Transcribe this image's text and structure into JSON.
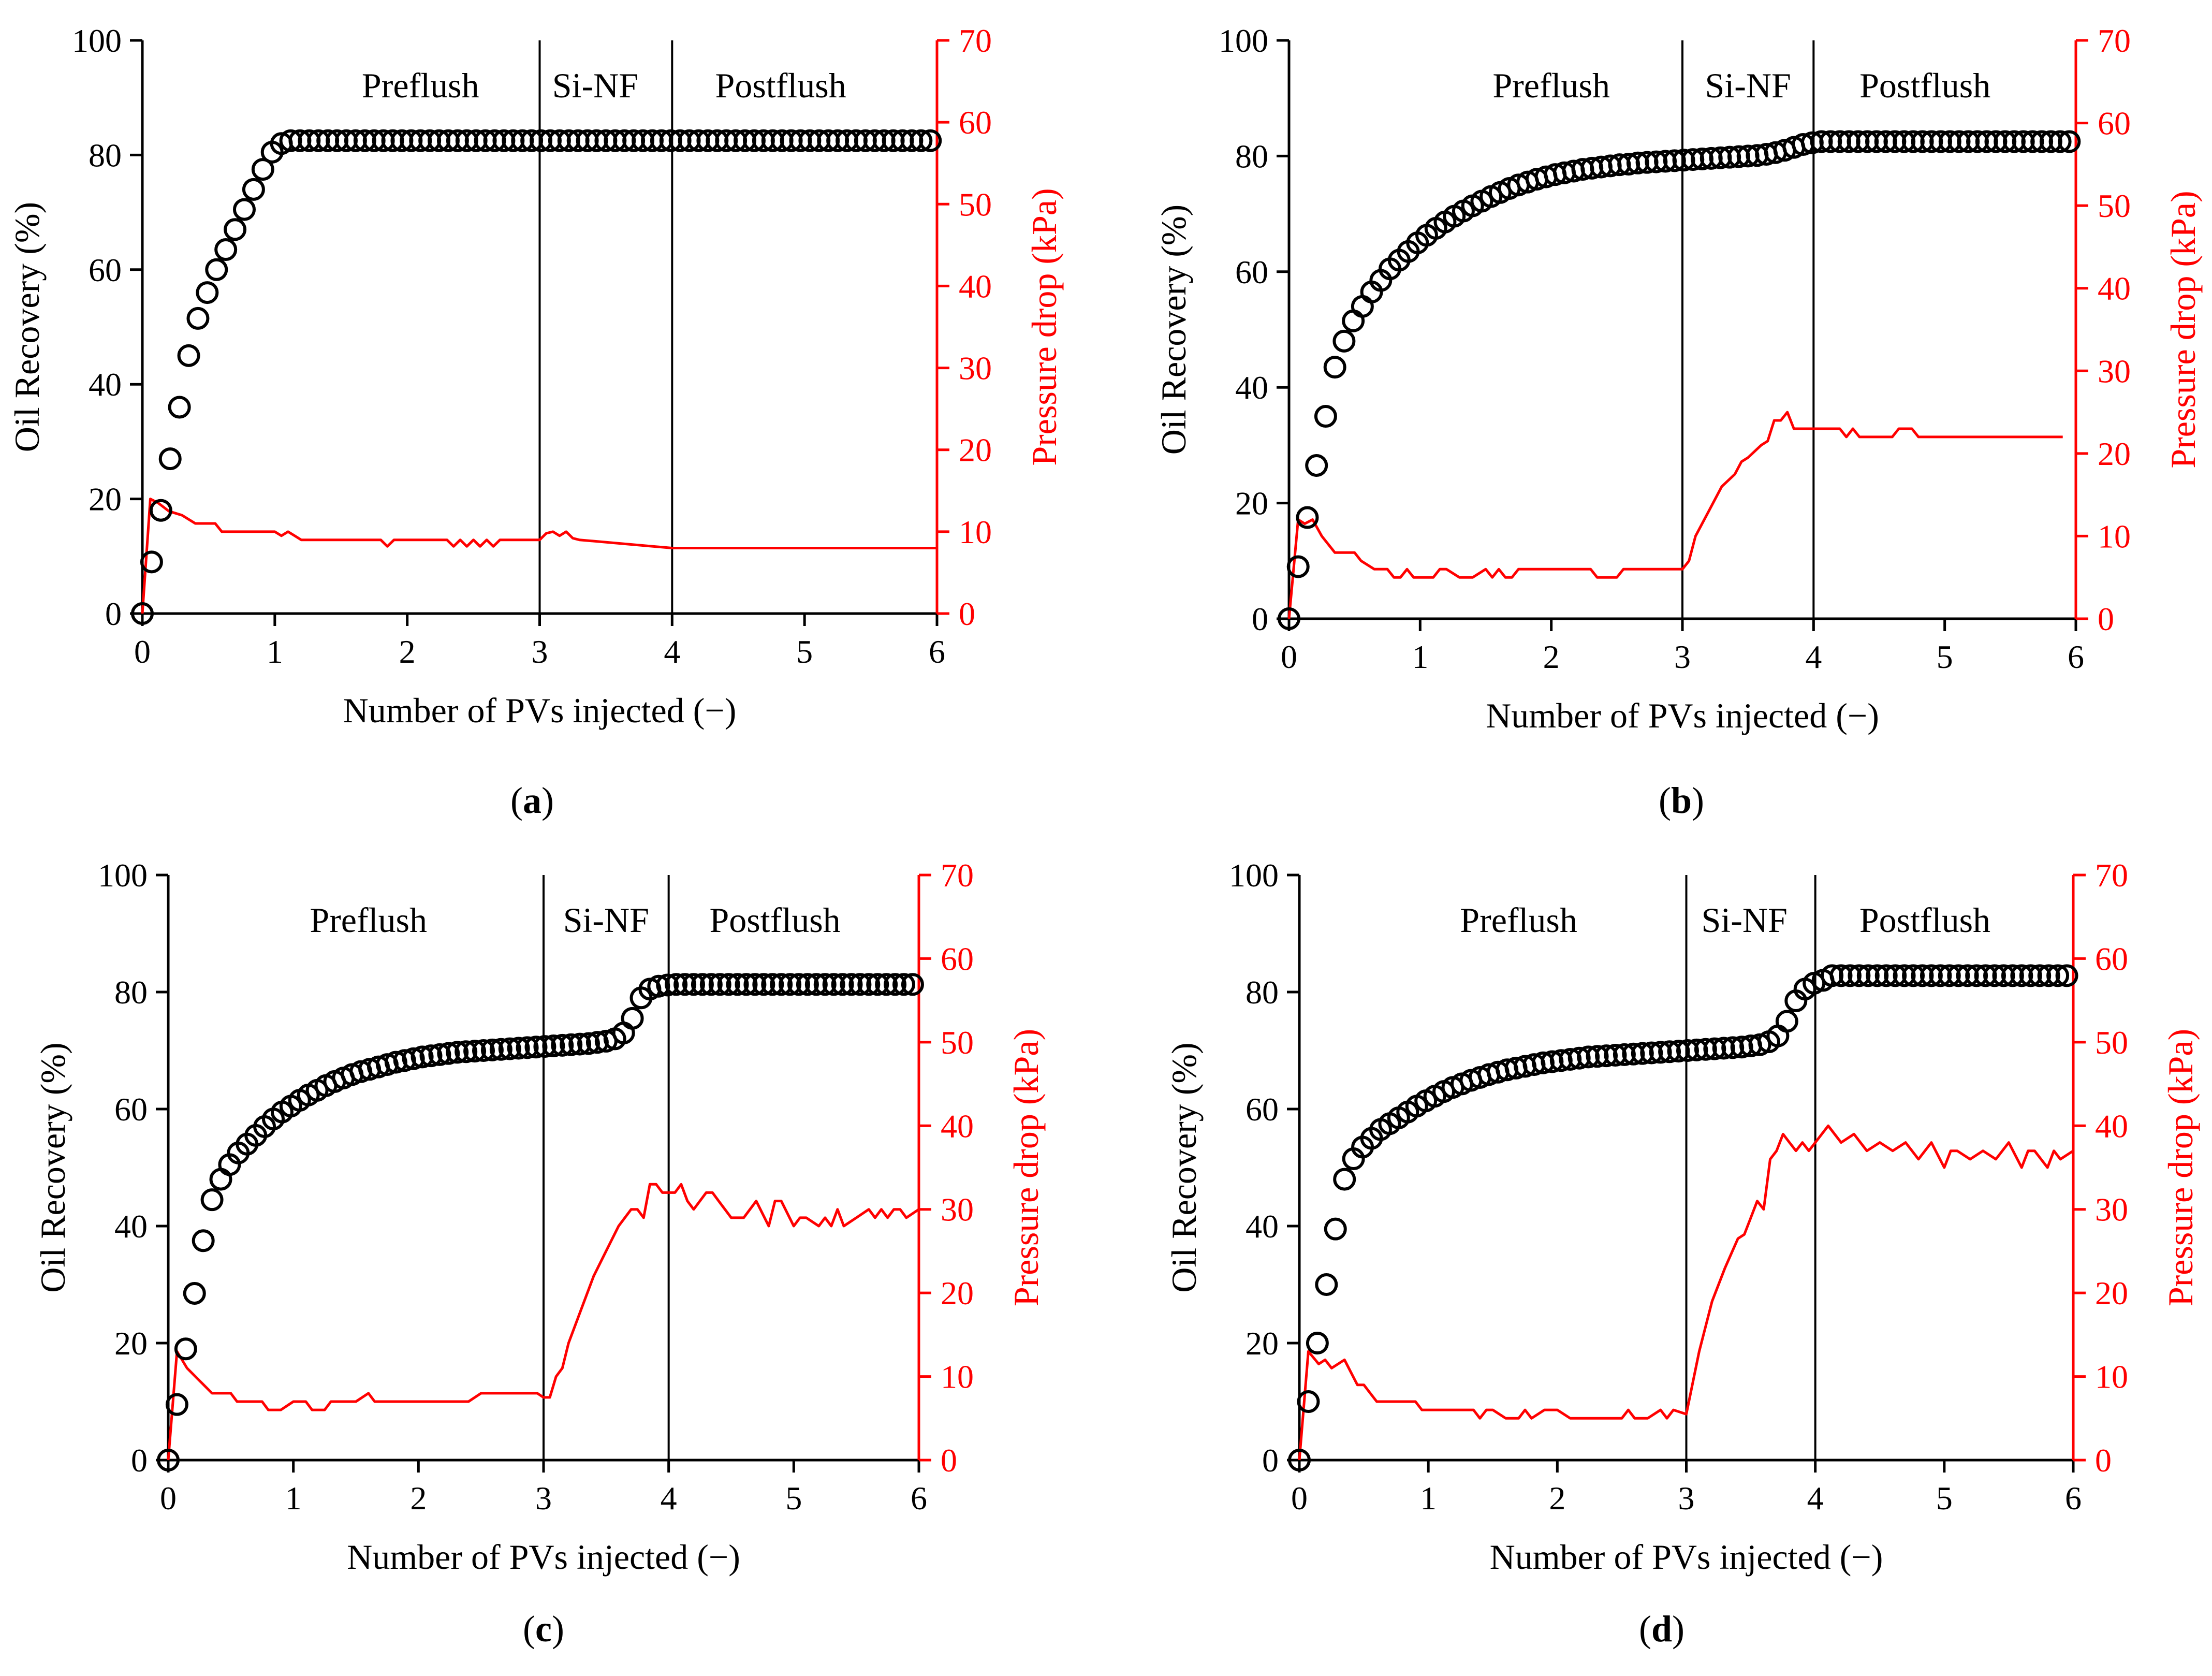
{
  "colors": {
    "recovery": "#000000",
    "pressure": "#ff0000",
    "axis": "#000000"
  },
  "icon_names": {
    "recovery_marker": "open-circle-marker",
    "pressure_line": "red-line"
  },
  "chart_data": [
    {
      "type": "scatter",
      "panel_label": "a",
      "xlabel": "Number of PVs injected (−)",
      "ylabel": "Oil Recovery (%)",
      "y2label": "Pressure drop (kPa)",
      "xlim": [
        0,
        6
      ],
      "ylim": [
        0,
        100
      ],
      "y2lim": [
        0,
        70
      ],
      "xticks": [
        "0",
        "1",
        "2",
        "3",
        "4",
        "5",
        "6"
      ],
      "yticks": [
        "0",
        "20",
        "40",
        "60",
        "80",
        "100"
      ],
      "y2ticks": [
        "0",
        "10",
        "20",
        "30",
        "40",
        "50",
        "60",
        "70"
      ],
      "phase_boundaries": [
        3,
        4
      ],
      "phases": [
        {
          "label": "Preflush",
          "x": 2.1
        },
        {
          "label": "Si-NF",
          "x": 3.42
        },
        {
          "label": "Postflush",
          "x": 4.82
        }
      ],
      "recovery": {
        "x": [
          0,
          0.07,
          0.14,
          0.21,
          0.28,
          0.35,
          0.42,
          0.49,
          0.56,
          0.63,
          0.7,
          0.77,
          0.84,
          0.91,
          0.98,
          1.05,
          1.12
        ],
        "y": [
          0,
          9,
          18,
          27,
          36,
          45,
          51.5,
          56,
          60,
          63.5,
          67,
          70.5,
          74,
          77.5,
          80.5,
          82,
          82.5
        ],
        "plateau": {
          "from": 1.19,
          "to": 6,
          "step": 0.07,
          "y": 82.5
        }
      },
      "pressure": {
        "x": [
          0,
          0.06,
          0.12,
          0.2,
          0.3,
          0.4,
          0.55,
          0.6,
          1.0,
          1.05,
          1.1,
          1.15,
          1.2,
          1.8,
          1.85,
          1.9,
          2.3,
          2.35,
          2.4,
          2.45,
          2.5,
          2.55,
          2.6,
          2.65,
          2.7,
          3.0,
          3.05,
          3.1,
          3.15,
          3.2,
          3.25,
          3.3,
          4.0,
          4.05,
          6.0
        ],
        "y": [
          0,
          14,
          13.5,
          12.5,
          12,
          11,
          11,
          10,
          10,
          9.5,
          10,
          9.5,
          9,
          9,
          8.2,
          9,
          9,
          8.2,
          9,
          8.2,
          9,
          8.2,
          9,
          8.2,
          9,
          9,
          9.8,
          10,
          9.5,
          10,
          9.2,
          9,
          8,
          8,
          8
        ]
      }
    },
    {
      "type": "scatter",
      "panel_label": "b",
      "xlabel": "Number of PVs injected (−)",
      "ylabel": "Oil Recovery (%)",
      "y2label": "Pressure drop (kPa)",
      "xlim": [
        0,
        6
      ],
      "ylim": [
        0,
        100
      ],
      "y2lim": [
        0,
        70
      ],
      "xticks": [
        "0",
        "1",
        "2",
        "3",
        "4",
        "5",
        "6"
      ],
      "yticks": [
        "0",
        "20",
        "40",
        "60",
        "80",
        "100"
      ],
      "y2ticks": [
        "0",
        "10",
        "20",
        "30",
        "40",
        "50",
        "60",
        "70"
      ],
      "phase_boundaries": [
        3,
        4
      ],
      "phases": [
        {
          "label": "Preflush",
          "x": 2.0
        },
        {
          "label": "Si-NF",
          "x": 3.5
        },
        {
          "label": "Postflush",
          "x": 4.85
        }
      ],
      "recovery": {
        "x": [
          0,
          0.07,
          0.14,
          0.21,
          0.28,
          0.35,
          0.42,
          0.49,
          0.56,
          0.63,
          0.7,
          0.77,
          0.84,
          0.91,
          0.98,
          1.05,
          1.12,
          1.19,
          1.26,
          1.33,
          1.4,
          1.47,
          1.54,
          1.61,
          1.68,
          1.75,
          1.82,
          1.89,
          1.96,
          2.03,
          2.1,
          2.17,
          2.24,
          2.31,
          2.38,
          2.45,
          2.52,
          2.59,
          2.66,
          2.73,
          2.8,
          2.87,
          2.94,
          3.01,
          3.08,
          3.15,
          3.22,
          3.29,
          3.36,
          3.43,
          3.5,
          3.57,
          3.64,
          3.71,
          3.78,
          3.85,
          3.92,
          3.99,
          4.06
        ],
        "y": [
          0,
          9,
          17.5,
          26.5,
          35,
          43.5,
          48,
          51.5,
          54,
          56.5,
          58.5,
          60.5,
          62,
          63.5,
          65,
          66.3,
          67.5,
          68.6,
          69.6,
          70.5,
          71.4,
          72.2,
          73,
          73.7,
          74.4,
          75,
          75.5,
          76,
          76.4,
          76.8,
          77.1,
          77.4,
          77.7,
          77.9,
          78.1,
          78.3,
          78.5,
          78.6,
          78.8,
          78.9,
          79,
          79.1,
          79.2,
          79.3,
          79.4,
          79.5,
          79.6,
          79.7,
          79.8,
          79.9,
          80,
          80.1,
          80.3,
          80.6,
          81,
          81.5,
          82,
          82.3,
          82.5
        ],
        "plateau": {
          "from": 4.13,
          "to": 6,
          "step": 0.07,
          "y": 82.5
        }
      },
      "pressure": {
        "x": [
          0,
          0.07,
          0.12,
          0.18,
          0.25,
          0.35,
          0.5,
          0.55,
          0.65,
          0.75,
          0.8,
          0.85,
          0.9,
          0.95,
          1.0,
          1.1,
          1.15,
          1.2,
          1.3,
          1.4,
          1.5,
          1.55,
          1.6,
          1.65,
          1.7,
          1.75,
          1.8,
          1.9,
          2.3,
          2.35,
          2.5,
          2.55,
          3.0,
          3.05,
          3.1,
          3.2,
          3.3,
          3.4,
          3.45,
          3.5,
          3.6,
          3.65,
          3.7,
          3.75,
          3.8,
          3.85,
          3.9,
          4.2,
          4.25,
          4.3,
          4.35,
          4.4,
          4.6,
          4.65,
          4.75,
          4.8,
          4.85,
          5.9
        ],
        "y": [
          0,
          12,
          11.5,
          12,
          10,
          8,
          8,
          7,
          6,
          6,
          5,
          5,
          6,
          5,
          5,
          5,
          6,
          6,
          5,
          5,
          6,
          5,
          6,
          5,
          5,
          6,
          6,
          6,
          6,
          5,
          5,
          6,
          6,
          7,
          10,
          13,
          16,
          17.5,
          19,
          19.5,
          21,
          21.5,
          24,
          24,
          25,
          23,
          23,
          23,
          22,
          23,
          22,
          22,
          22,
          23,
          23,
          22,
          22,
          22
        ]
      }
    },
    {
      "type": "scatter",
      "panel_label": "c",
      "xlabel": "Number of PVs injected (−)",
      "ylabel": "Oil Recovery (%)",
      "y2label": "Pressure drop (kPa)",
      "xlim": [
        0,
        6
      ],
      "ylim": [
        0,
        100
      ],
      "y2lim": [
        0,
        70
      ],
      "xticks": [
        "0",
        "1",
        "2",
        "3",
        "4",
        "5",
        "6"
      ],
      "yticks": [
        "0",
        "20",
        "40",
        "60",
        "80",
        "100"
      ],
      "y2ticks": [
        "0",
        "10",
        "20",
        "30",
        "40",
        "50",
        "60",
        "70"
      ],
      "phase_boundaries": [
        3,
        4
      ],
      "phases": [
        {
          "label": "Preflush",
          "x": 1.6
        },
        {
          "label": "Si-NF",
          "x": 3.5
        },
        {
          "label": "Postflush",
          "x": 4.85
        }
      ],
      "recovery": {
        "x": [
          0,
          0.07,
          0.14,
          0.21,
          0.28,
          0.35,
          0.42,
          0.49,
          0.56,
          0.63,
          0.7,
          0.77,
          0.84,
          0.91,
          0.98,
          1.05,
          1.12,
          1.19,
          1.26,
          1.33,
          1.4,
          1.47,
          1.54,
          1.61,
          1.68,
          1.75,
          1.82,
          1.89,
          1.96,
          2.03,
          2.1,
          2.17,
          2.24,
          2.31,
          2.38,
          2.45,
          2.52,
          2.59,
          2.66,
          2.73,
          2.8,
          2.87,
          2.94,
          3.01,
          3.08,
          3.15,
          3.22,
          3.29,
          3.36,
          3.43,
          3.5,
          3.57,
          3.64,
          3.71,
          3.78,
          3.85,
          3.92,
          3.99,
          4.06
        ],
        "y": [
          0,
          9.5,
          19,
          28.5,
          37.5,
          44.5,
          48,
          50.5,
          52.5,
          54,
          55.5,
          57,
          58.3,
          59.5,
          60.5,
          61.5,
          62.4,
          63.2,
          64,
          64.7,
          65.3,
          65.9,
          66.4,
          66.8,
          67.2,
          67.6,
          68,
          68.3,
          68.6,
          68.9,
          69.1,
          69.3,
          69.5,
          69.7,
          69.8,
          69.9,
          70,
          70.1,
          70.2,
          70.3,
          70.4,
          70.5,
          70.6,
          70.7,
          70.8,
          70.9,
          71,
          71.1,
          71.2,
          71.4,
          71.6,
          72,
          73,
          75.5,
          79,
          80.5,
          81,
          81.2,
          81.3
        ],
        "plateau": {
          "from": 4.13,
          "to": 6,
          "step": 0.07,
          "y": 81.3
        }
      },
      "pressure": {
        "x": [
          0,
          0.07,
          0.15,
          0.25,
          0.35,
          0.5,
          0.55,
          0.75,
          0.8,
          0.9,
          1.0,
          1.1,
          1.15,
          1.25,
          1.3,
          1.5,
          1.6,
          1.65,
          1.7,
          1.8,
          2.4,
          2.5,
          2.9,
          2.95,
          3.0,
          3.05,
          3.1,
          3.15,
          3.2,
          3.3,
          3.4,
          3.5,
          3.6,
          3.7,
          3.75,
          3.8,
          3.85,
          3.9,
          3.95,
          4.05,
          4.1,
          4.15,
          4.2,
          4.3,
          4.35,
          4.4,
          4.5,
          4.6,
          4.7,
          4.8,
          4.85,
          4.9,
          5.0,
          5.05,
          5.1,
          5.2,
          5.25,
          5.3,
          5.35,
          5.4,
          5.5,
          5.6,
          5.65,
          5.7,
          5.75,
          5.8,
          5.85,
          5.9,
          6.0
        ],
        "y": [
          0,
          13,
          11,
          9.5,
          8,
          8,
          7,
          7,
          6,
          6,
          7,
          7,
          6,
          6,
          7,
          7,
          8,
          7,
          7,
          7,
          7,
          8,
          8,
          8,
          7.5,
          7.5,
          10,
          11,
          14,
          18,
          22,
          25,
          28,
          30,
          30,
          29,
          33,
          33,
          32,
          32,
          33,
          31,
          30,
          32,
          32,
          31,
          29,
          29,
          31,
          28,
          31,
          31,
          28,
          29,
          29,
          28,
          29,
          28,
          30,
          28,
          29,
          30,
          29,
          30,
          29,
          30,
          30,
          29,
          30
        ]
      }
    },
    {
      "type": "scatter",
      "panel_label": "d",
      "xlabel": "Number of PVs injected (−)",
      "ylabel": "Oil Recovery (%)",
      "y2label": "Pressure drop (kPa)",
      "xlim": [
        0,
        6
      ],
      "ylim": [
        0,
        100
      ],
      "y2lim": [
        0,
        70
      ],
      "xticks": [
        "0",
        "1",
        "2",
        "3",
        "4",
        "5",
        "6"
      ],
      "yticks": [
        "0",
        "20",
        "40",
        "60",
        "80",
        "100"
      ],
      "y2ticks": [
        "0",
        "10",
        "20",
        "30",
        "40",
        "50",
        "60",
        "70"
      ],
      "phase_boundaries": [
        3,
        4
      ],
      "phases": [
        {
          "label": "Preflush",
          "x": 1.7
        },
        {
          "label": "Si-NF",
          "x": 3.45
        },
        {
          "label": "Postflush",
          "x": 4.85
        }
      ],
      "recovery": {
        "x": [
          0,
          0.07,
          0.14,
          0.21,
          0.28,
          0.35,
          0.42,
          0.49,
          0.56,
          0.63,
          0.7,
          0.77,
          0.84,
          0.91,
          0.98,
          1.05,
          1.12,
          1.19,
          1.26,
          1.33,
          1.4,
          1.47,
          1.54,
          1.61,
          1.68,
          1.75,
          1.82,
          1.89,
          1.96,
          2.03,
          2.1,
          2.17,
          2.24,
          2.31,
          2.38,
          2.45,
          2.52,
          2.59,
          2.66,
          2.73,
          2.8,
          2.87,
          2.94,
          3.01,
          3.08,
          3.15,
          3.22,
          3.29,
          3.36,
          3.43,
          3.5,
          3.57,
          3.64,
          3.71,
          3.78,
          3.85,
          3.92,
          3.99,
          4.06
        ],
        "y": [
          0,
          10,
          20,
          30,
          39.5,
          48,
          51.5,
          53.5,
          55,
          56.5,
          57.5,
          58.5,
          59.5,
          60.5,
          61.4,
          62.2,
          63,
          63.7,
          64.3,
          64.9,
          65.4,
          65.9,
          66.3,
          66.7,
          67,
          67.3,
          67.6,
          67.9,
          68.1,
          68.3,
          68.5,
          68.7,
          68.9,
          69,
          69.1,
          69.2,
          69.3,
          69.4,
          69.5,
          69.6,
          69.7,
          69.8,
          69.9,
          70,
          70.1,
          70.2,
          70.3,
          70.4,
          70.5,
          70.6,
          70.8,
          71,
          71.5,
          72.5,
          75,
          78.5,
          80.5,
          81.5,
          82
        ],
        "plateau": {
          "from": 4.13,
          "to": 6,
          "step": 0.07,
          "y": 82.8
        }
      },
      "pressure": {
        "x": [
          0,
          0.07,
          0.15,
          0.2,
          0.25,
          0.35,
          0.45,
          0.5,
          0.55,
          0.6,
          0.65,
          0.7,
          0.8,
          0.9,
          0.95,
          1.0,
          1.35,
          1.4,
          1.45,
          1.5,
          1.6,
          1.7,
          1.75,
          1.8,
          1.9,
          2.0,
          2.1,
          2.5,
          2.55,
          2.6,
          2.7,
          2.8,
          2.85,
          2.9,
          3.0,
          3.1,
          3.2,
          3.3,
          3.4,
          3.45,
          3.5,
          3.55,
          3.6,
          3.65,
          3.7,
          3.75,
          3.8,
          3.85,
          3.9,
          3.95,
          4.0,
          4.1,
          4.2,
          4.3,
          4.4,
          4.5,
          4.6,
          4.7,
          4.8,
          4.9,
          5.0,
          5.05,
          5.1,
          5.2,
          5.3,
          5.4,
          5.5,
          5.6,
          5.65,
          5.7,
          5.8,
          5.85,
          5.9,
          6.0
        ],
        "y": [
          0,
          13,
          11.5,
          12,
          11,
          12,
          9,
          9,
          8,
          7,
          7,
          7,
          7,
          7,
          6,
          6,
          6,
          5,
          6,
          6,
          5,
          5,
          6,
          5,
          6,
          6,
          5,
          5,
          6,
          5,
          5,
          6,
          5,
          6,
          5.5,
          13,
          19,
          23,
          26.5,
          27,
          29,
          31,
          30,
          36,
          37,
          39,
          38,
          37,
          38,
          37,
          38,
          40,
          38,
          39,
          37,
          38,
          37,
          38,
          36,
          38,
          35,
          37,
          37,
          36,
          37,
          36,
          38,
          35,
          37,
          37,
          35,
          37,
          36,
          37
        ]
      }
    }
  ]
}
